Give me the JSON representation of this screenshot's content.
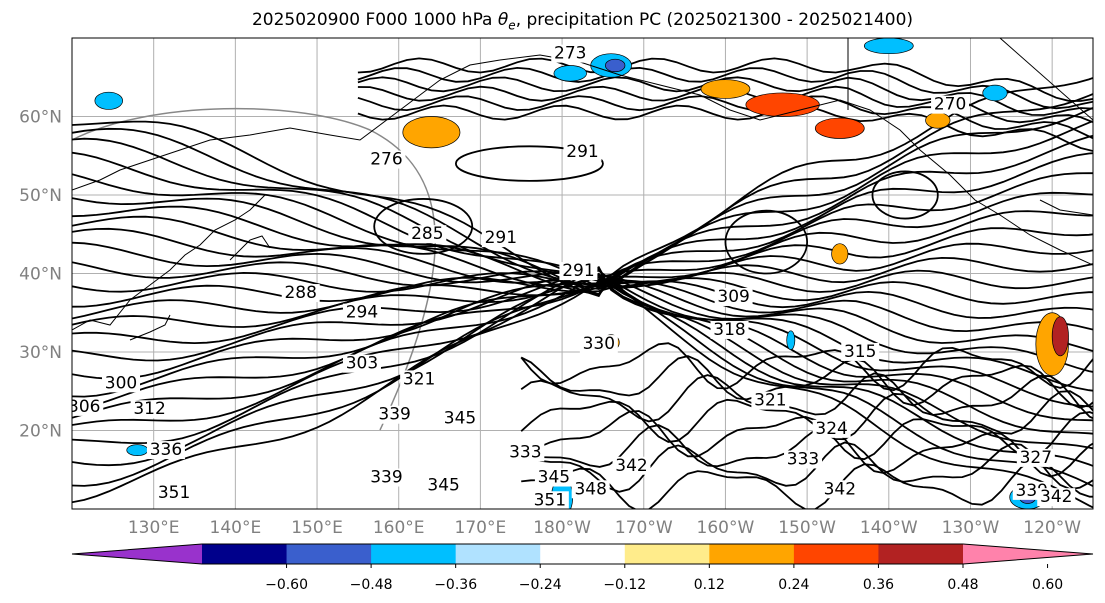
{
  "title": {
    "prefix": "2025020900 F000 1000 hPa ",
    "symbol": "θ",
    "subscript": "e",
    "suffix": ", precipitation PC (2025021300 - 2025021400)"
  },
  "map": {
    "lon_range": [
      120,
      245
    ],
    "lat_range": [
      10,
      70
    ],
    "lat_ticks": [
      {
        "lat": 20,
        "label": "20°N"
      },
      {
        "lat": 30,
        "label": "30°N"
      },
      {
        "lat": 40,
        "label": "40°N"
      },
      {
        "lat": 50,
        "label": "50°N"
      },
      {
        "lat": 60,
        "label": "60°N"
      }
    ],
    "lon_ticks": [
      {
        "lon": 130,
        "label": "130°E"
      },
      {
        "lon": 140,
        "label": "140°E"
      },
      {
        "lon": 150,
        "label": "150°E"
      },
      {
        "lon": 160,
        "label": "160°E"
      },
      {
        "lon": 170,
        "label": "170°E"
      },
      {
        "lon": 180,
        "label": "180°W"
      },
      {
        "lon": 190,
        "label": "170°W"
      },
      {
        "lon": 200,
        "label": "160°W"
      },
      {
        "lon": 210,
        "label": "150°W"
      },
      {
        "lon": 220,
        "label": "140°W"
      },
      {
        "lon": 230,
        "label": "130°W"
      },
      {
        "lon": 240,
        "label": "120°W"
      }
    ],
    "gridlines": true,
    "contour_labels": [
      {
        "lon": 126,
        "lat": 25.5,
        "text": "300"
      },
      {
        "lon": 121.5,
        "lat": 22.5,
        "text": "306"
      },
      {
        "lon": 129.5,
        "lat": 22.2,
        "text": "312"
      },
      {
        "lon": 131.5,
        "lat": 17,
        "text": "336"
      },
      {
        "lon": 132.5,
        "lat": 11.5,
        "text": "351"
      },
      {
        "lon": 148,
        "lat": 37,
        "text": "288"
      },
      {
        "lon": 155.5,
        "lat": 34.5,
        "text": "294"
      },
      {
        "lon": 155.5,
        "lat": 28,
        "text": "303"
      },
      {
        "lon": 162.5,
        "lat": 26,
        "text": "321"
      },
      {
        "lon": 159.5,
        "lat": 21.5,
        "text": "339"
      },
      {
        "lon": 167.5,
        "lat": 21,
        "text": "345"
      },
      {
        "lon": 158.5,
        "lat": 13.5,
        "text": "339"
      },
      {
        "lon": 165.5,
        "lat": 12.5,
        "text": "345"
      },
      {
        "lon": 175.5,
        "lat": 16.7,
        "text": "333"
      },
      {
        "lon": 179,
        "lat": 13.5,
        "text": "345"
      },
      {
        "lon": 183.5,
        "lat": 12,
        "text": "348"
      },
      {
        "lon": 178.5,
        "lat": 10.6,
        "text": "351"
      },
      {
        "lon": 188.5,
        "lat": 15,
        "text": "342"
      },
      {
        "lon": 163.5,
        "lat": 44.5,
        "text": "285"
      },
      {
        "lon": 172.5,
        "lat": 44,
        "text": "291"
      },
      {
        "lon": 182.5,
        "lat": 55,
        "text": "291"
      },
      {
        "lon": 158.5,
        "lat": 54,
        "text": "276"
      },
      {
        "lon": 182,
        "lat": 39.8,
        "text": "291"
      },
      {
        "lon": 184.5,
        "lat": 30.5,
        "text": "330"
      },
      {
        "lon": 201,
        "lat": 36.5,
        "text": "309"
      },
      {
        "lon": 200.5,
        "lat": 32.3,
        "text": "318"
      },
      {
        "lon": 216.5,
        "lat": 29.5,
        "text": "315"
      },
      {
        "lon": 205.5,
        "lat": 23.3,
        "text": "321"
      },
      {
        "lon": 213,
        "lat": 19.7,
        "text": "324"
      },
      {
        "lon": 209.5,
        "lat": 15.8,
        "text": "333"
      },
      {
        "lon": 214,
        "lat": 12,
        "text": "342"
      },
      {
        "lon": 238,
        "lat": 16,
        "text": "327"
      },
      {
        "lon": 237.5,
        "lat": 11.8,
        "text": "339"
      },
      {
        "lon": 240.5,
        "lat": 11,
        "text": "342"
      },
      {
        "lon": 181,
        "lat": 67.5,
        "text": "273"
      },
      {
        "lon": 227.5,
        "lat": 61,
        "text": "270"
      }
    ]
  },
  "colorbar": {
    "colors": [
      "#9932cc",
      "#00008b",
      "#3a5fcd",
      "#00bfff",
      "#b0e2ff",
      "#ffffff",
      "#ffec8b",
      "#ffa500",
      "#ff4500",
      "#b22222",
      "#ff82ab"
    ],
    "ticks": [
      "−0.60",
      "−0.48",
      "−0.36",
      "−0.24",
      "−0.12",
      "0.12",
      "0.24",
      "0.36",
      "0.48",
      "0.60"
    ]
  }
}
